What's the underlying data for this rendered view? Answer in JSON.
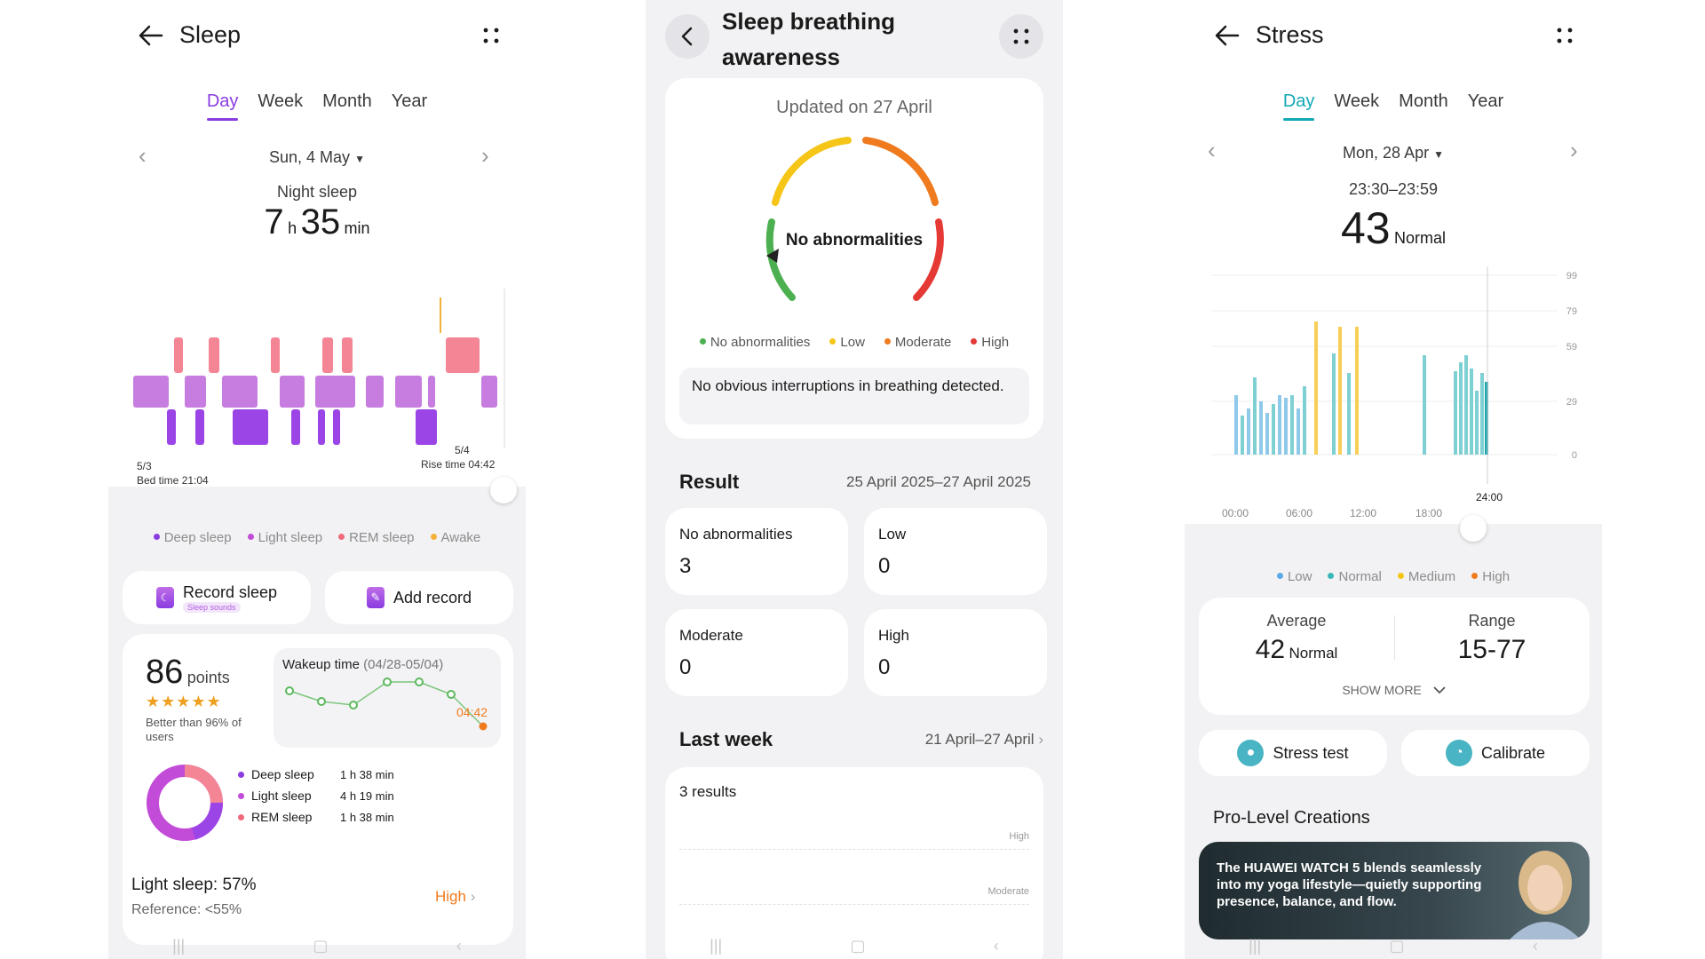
{
  "sleep": {
    "title": "Sleep",
    "tabs": [
      "Day",
      "Week",
      "Month",
      "Year"
    ],
    "date": "Sun, 4 May",
    "night_sleep_label": "Night sleep",
    "duration_h": "7",
    "h_unit": "h",
    "duration_m": "35",
    "min_unit": "min",
    "bed_date": "5/3",
    "bed_time": "Bed time 21:04",
    "rise_date": "5/4",
    "rise_time": "Rise time 04:42",
    "legend": [
      {
        "label": "Deep sleep",
        "color": "#8a3ce0"
      },
      {
        "label": "Light sleep",
        "color": "#c24bd8"
      },
      {
        "label": "REM sleep",
        "color": "#f06a7a"
      },
      {
        "label": "Awake",
        "color": "#f4b13a"
      }
    ],
    "record_sleep": "Record sleep",
    "record_sub": "Sleep sounds",
    "add_record": "Add record",
    "score": "86",
    "score_unit": "points",
    "stars": "★★★★★",
    "better_than": "Better than 96% of users",
    "wakeup_title": "Wakeup time",
    "wakeup_range": "(04/28-05/04)",
    "wakeup_value": "04:42",
    "breakdown": [
      {
        "label": "Deep sleep",
        "value": "1 h 38 min",
        "color": "#8a3ce0"
      },
      {
        "label": "Light sleep",
        "value": "4 h 19 min",
        "color": "#c24bd8"
      },
      {
        "label": "REM sleep",
        "value": "1 h 38 min",
        "color": "#f06a7a"
      }
    ],
    "light_sleep_pct": "Light sleep: 57%",
    "reference": "Reference: <55%",
    "high_label": "High"
  },
  "breathing": {
    "title_line1": "Sleep breathing",
    "title_line2": "awareness",
    "updated": "Updated on 27 April",
    "gauge_status": "No abnormalities",
    "legend": [
      {
        "label": "No abnormalities",
        "color": "#4caf50"
      },
      {
        "label": "Low",
        "color": "#f5c518"
      },
      {
        "label": "Moderate",
        "color": "#f07a1e"
      },
      {
        "label": "High",
        "color": "#e53935"
      }
    ],
    "message": "No obvious interruptions in breathing detected.",
    "result_title": "Result",
    "result_range": "25 April 2025–27 April 2025",
    "counts": [
      {
        "label": "No abnormalities",
        "value": "3"
      },
      {
        "label": "Low",
        "value": "0"
      },
      {
        "label": "Moderate",
        "value": "0"
      },
      {
        "label": "High",
        "value": "0"
      }
    ],
    "last_week_title": "Last week",
    "last_week_range": "21 April–27 April",
    "results_count": "3 results",
    "axis_high": "High",
    "axis_moderate": "Moderate"
  },
  "stress": {
    "title": "Stress",
    "tabs": [
      "Day",
      "Week",
      "Month",
      "Year"
    ],
    "date": "Mon, 28 Apr",
    "time_range": "23:30–23:59",
    "value": "43",
    "status": "Normal",
    "y_ticks": [
      "99",
      "79",
      "59",
      "29",
      "0"
    ],
    "x_ticks": [
      "00:00",
      "06:00",
      "12:00",
      "18:00"
    ],
    "cursor_time": "24:00",
    "legend": [
      {
        "label": "Low",
        "color": "#5aa9e6"
      },
      {
        "label": "Normal",
        "color": "#3bb6b9"
      },
      {
        "label": "Medium",
        "color": "#f5c518"
      },
      {
        "label": "High",
        "color": "#f07a1e"
      }
    ],
    "average_label": "Average",
    "average_value": "42",
    "average_status": "Normal",
    "range_label": "Range",
    "range_value": "15-77",
    "show_more": "SHOW MORE",
    "stress_test": "Stress test",
    "calibrate": "Calibrate",
    "pro_title": "Pro-Level Creations",
    "promo_text": "The HUAWEI WATCH 5 blends seamlessly into my yoga lifestyle—quietly supporting presence, balance, and flow."
  }
}
